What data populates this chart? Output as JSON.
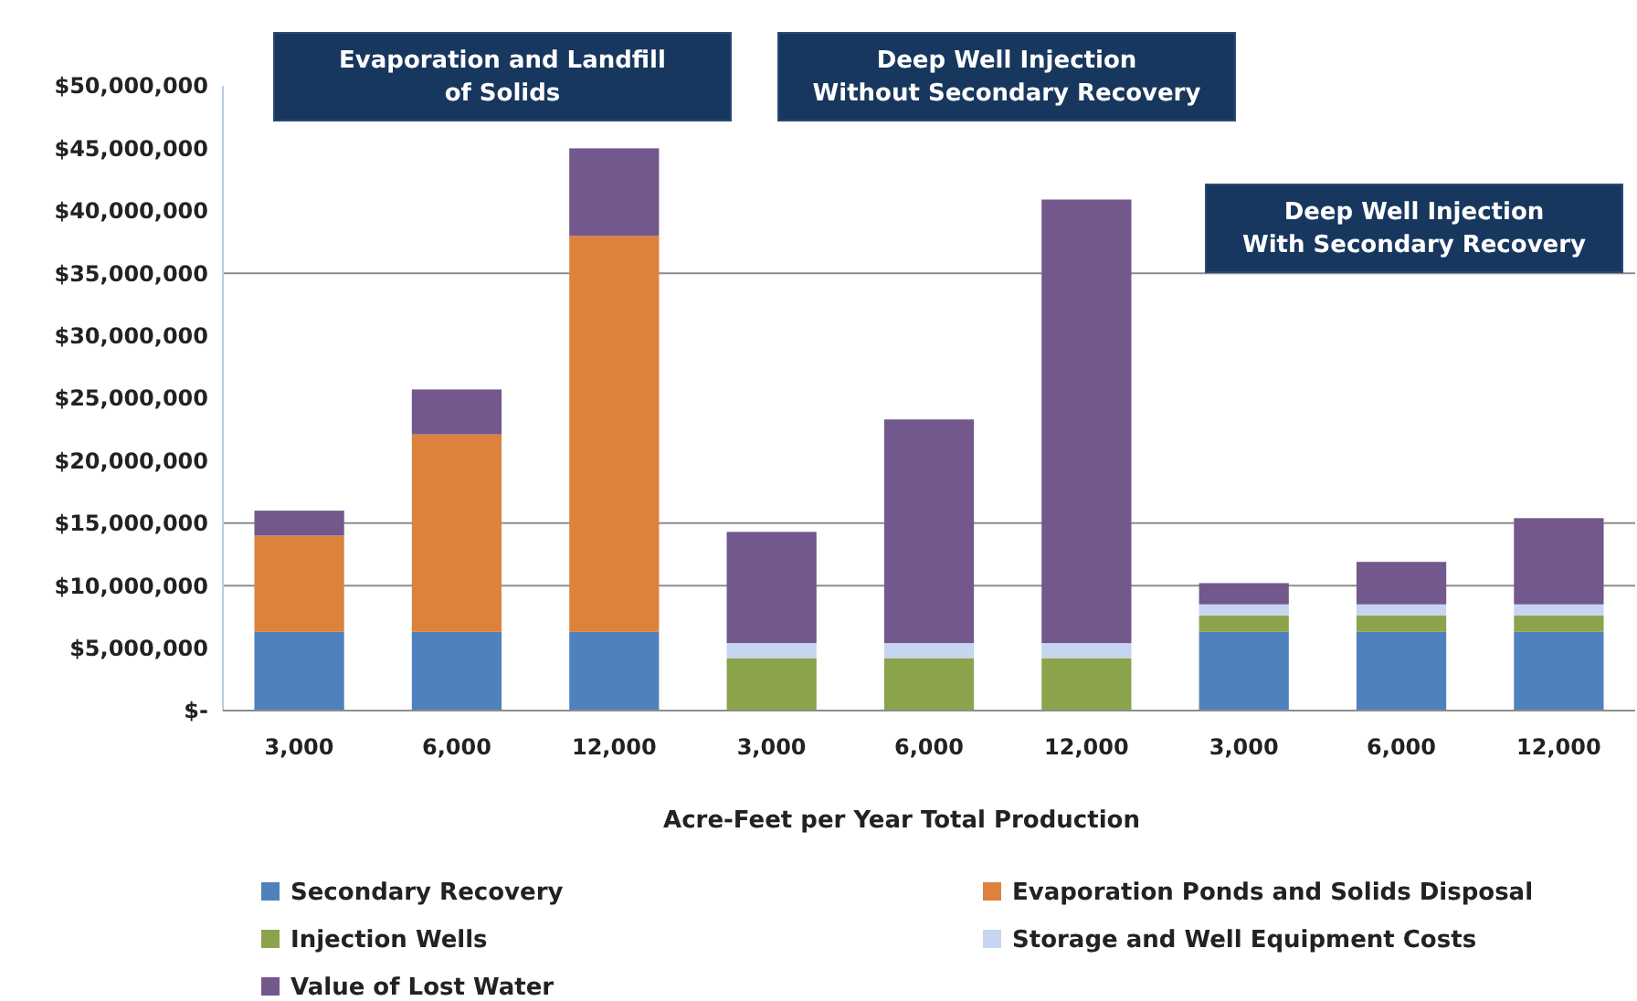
{
  "chart_data": {
    "type": "bar",
    "stacked": true,
    "categories": [
      "3,000",
      "6,000",
      "12,000",
      "3,000",
      "6,000",
      "12,000",
      "3,000",
      "6,000",
      "12,000"
    ],
    "series": [
      {
        "name": "Secondary Recovery",
        "color": "#4f81bd",
        "values": [
          6300000,
          6300000,
          6300000,
          0,
          0,
          0,
          6300000,
          6300000,
          6300000
        ]
      },
      {
        "name": "Evaporation Ponds and Solids Disposal",
        "color": "#dc823d",
        "values": [
          7700000,
          15800000,
          31700000,
          0,
          0,
          0,
          0,
          0,
          0
        ]
      },
      {
        "name": "Injection Wells",
        "color": "#8ba44c",
        "values": [
          0,
          0,
          0,
          4200000,
          4200000,
          4200000,
          1300000,
          1300000,
          1300000
        ]
      },
      {
        "name": "Storage and Well Equipment Costs",
        "color": "#c6d6f0",
        "values": [
          0,
          0,
          0,
          1200000,
          1200000,
          1200000,
          900000,
          900000,
          900000
        ]
      },
      {
        "name": "Value of Lost Water",
        "color": "#72588d",
        "values": [
          2000000,
          3600000,
          7000000,
          8900000,
          17900000,
          35500000,
          1700000,
          3400000,
          6900000
        ]
      }
    ],
    "ylim": [
      0,
      50000000
    ],
    "yticks": [
      {
        "value": 0,
        "label": "$-"
      },
      {
        "value": 5000000,
        "label": "$5,000,000"
      },
      {
        "value": 10000000,
        "label": "$10,000,000"
      },
      {
        "value": 15000000,
        "label": "$15,000,000"
      },
      {
        "value": 20000000,
        "label": "$20,000,000"
      },
      {
        "value": 25000000,
        "label": "$25,000,000"
      },
      {
        "value": 30000000,
        "label": "$30,000,000"
      },
      {
        "value": 35000000,
        "label": "$35,000,000"
      },
      {
        "value": 40000000,
        "label": "$40,000,000"
      },
      {
        "value": 45000000,
        "label": "$45,000,000"
      },
      {
        "value": 50000000,
        "label": "$50,000,000"
      }
    ],
    "ref_lines": [
      {
        "axis": "y",
        "value": 10000000,
        "color": "#8c8c8c"
      },
      {
        "axis": "y",
        "value": 15000000,
        "color": "#8c8c8c"
      },
      {
        "axis": "y",
        "value": 35000000,
        "color": "#8c8c8c"
      }
    ],
    "xlabel": "Acre-Feet per Year Total Production",
    "annotations": [
      "Evaporation and Landfill\nof Solids",
      "Deep Well Injection\nWithout Secondary Recovery",
      "Deep Well Injection\nWith Secondary Recovery"
    ],
    "legend": "bottom"
  }
}
